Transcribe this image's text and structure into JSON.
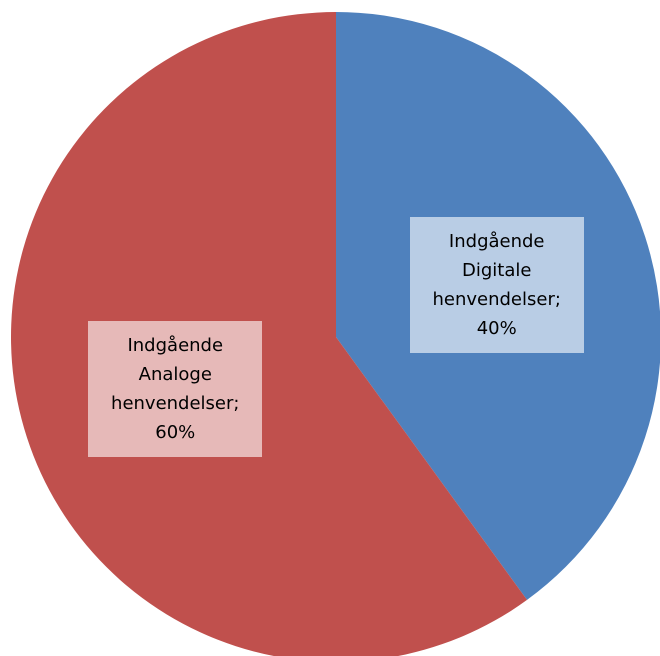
{
  "chart_data": {
    "type": "pie",
    "categories": [
      "Indgående Digitale henvendelser",
      "Indgående Analoge henvendelser"
    ],
    "values": [
      40,
      60
    ],
    "value_labels": [
      "40%",
      "60%"
    ],
    "label_separator": ";",
    "colors": [
      "#4f81bd",
      "#c0504d"
    ],
    "label_colors": [
      "#b9cde5",
      "#e6b9b8"
    ]
  }
}
